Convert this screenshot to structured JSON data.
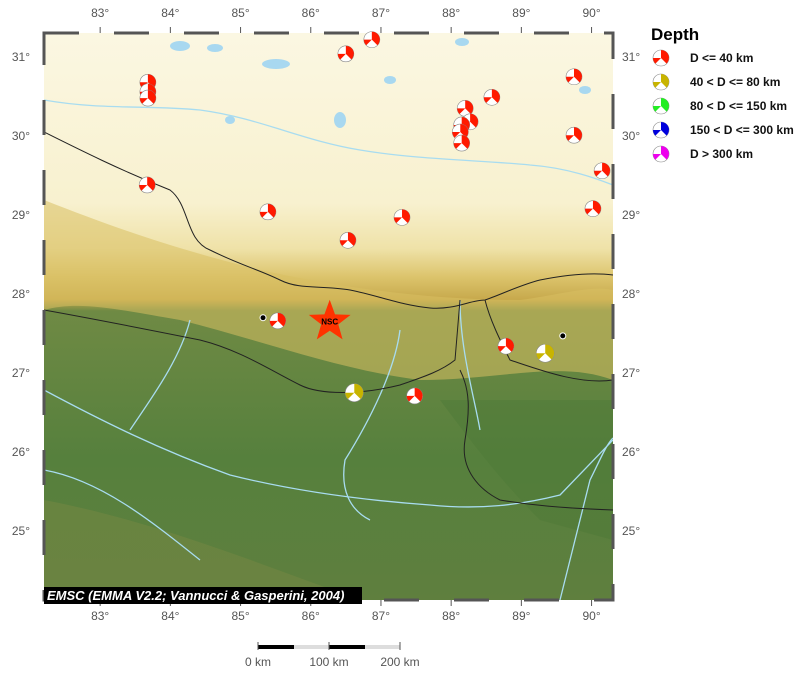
{
  "map": {
    "lon_range": [
      82.2,
      90.3
    ],
    "lat_range": [
      24.1,
      31.3
    ],
    "lon_ticks": [
      "83°",
      "84°",
      "85°",
      "86°",
      "87°",
      "88°",
      "89°",
      "90°"
    ],
    "lat_ticks": [
      "31°",
      "30°",
      "29°",
      "28°",
      "27°",
      "26°",
      "25°"
    ],
    "credit": "EMSC (EMMA V2.2; Vannucci & Gasperini, 2004)",
    "station": {
      "label": "NSC",
      "lon": 86.27,
      "lat": 27.65,
      "color": "#ff3300"
    },
    "cities": [
      {
        "lon": 85.32,
        "lat": 27.7
      },
      {
        "lon": 89.59,
        "lat": 27.47
      }
    ],
    "events": [
      {
        "lon": 83.68,
        "lat": 30.68,
        "depth_class": 0
      },
      {
        "lon": 83.68,
        "lat": 30.56,
        "depth_class": 0
      },
      {
        "lon": 83.68,
        "lat": 30.48,
        "depth_class": 0
      },
      {
        "lon": 83.67,
        "lat": 29.38,
        "depth_class": 0
      },
      {
        "lon": 86.5,
        "lat": 31.04,
        "depth_class": 0
      },
      {
        "lon": 86.87,
        "lat": 31.22,
        "depth_class": 0
      },
      {
        "lon": 85.39,
        "lat": 29.04,
        "depth_class": 0
      },
      {
        "lon": 86.53,
        "lat": 28.68,
        "depth_class": 0
      },
      {
        "lon": 87.3,
        "lat": 28.97,
        "depth_class": 0
      },
      {
        "lon": 88.58,
        "lat": 30.49,
        "depth_class": 0
      },
      {
        "lon": 88.2,
        "lat": 30.35,
        "depth_class": 0
      },
      {
        "lon": 88.27,
        "lat": 30.18,
        "depth_class": 0
      },
      {
        "lon": 88.15,
        "lat": 30.14,
        "depth_class": 0
      },
      {
        "lon": 88.13,
        "lat": 30.05,
        "depth_class": 0
      },
      {
        "lon": 88.15,
        "lat": 29.91,
        "depth_class": 0
      },
      {
        "lon": 89.75,
        "lat": 30.75,
        "depth_class": 0
      },
      {
        "lon": 89.75,
        "lat": 30.01,
        "depth_class": 0
      },
      {
        "lon": 90.15,
        "lat": 29.56,
        "depth_class": 0
      },
      {
        "lon": 90.02,
        "lat": 29.08,
        "depth_class": 0
      },
      {
        "lon": 85.53,
        "lat": 27.66,
        "depth_class": 0
      },
      {
        "lon": 88.78,
        "lat": 27.34,
        "depth_class": 0
      },
      {
        "lon": 89.34,
        "lat": 27.25,
        "depth_class": 1
      },
      {
        "lon": 86.62,
        "lat": 26.75,
        "depth_class": 1
      },
      {
        "lon": 87.48,
        "lat": 26.71,
        "depth_class": 0
      }
    ]
  },
  "legend": {
    "title": "Depth",
    "items": [
      {
        "label": "D <= 40 km",
        "color": "#ff1a00"
      },
      {
        "label": "40 < D <= 80 km",
        "color": "#c8b400"
      },
      {
        "label": "80 < D <= 150 km",
        "color": "#22ee22"
      },
      {
        "label": "150 < D <= 300 km",
        "color": "#0000dd"
      },
      {
        "label": "D > 300 km",
        "color": "#ee00ee"
      }
    ]
  },
  "scalebar": {
    "labels": [
      "0 km",
      "100 km",
      "200 km"
    ]
  }
}
